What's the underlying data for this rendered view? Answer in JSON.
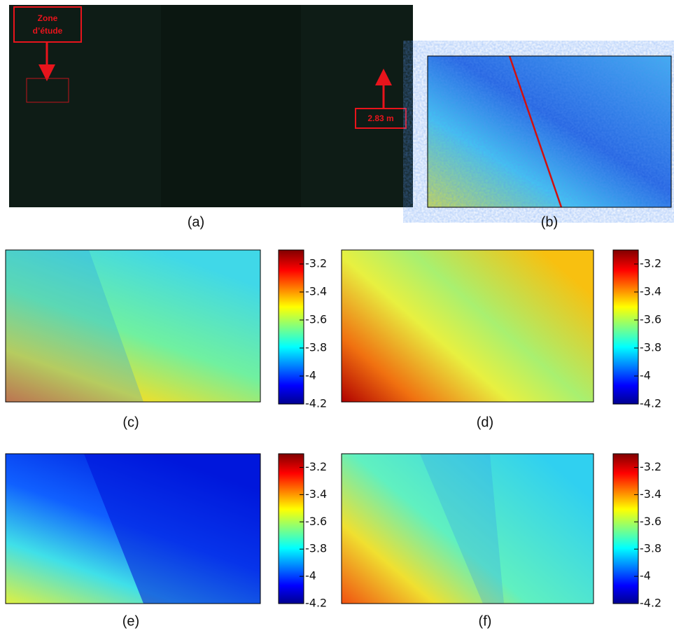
{
  "figure": {
    "panels": [
      {
        "caption": "(a)",
        "study_zone": [
          "Zone",
          "d’étude"
        ],
        "height": "2.83 m"
      },
      {
        "caption": "(b)"
      },
      {
        "caption": "(c)"
      },
      {
        "caption": "(d)"
      },
      {
        "caption": "(e)"
      },
      {
        "caption": "(f)"
      }
    ],
    "colorbar": {
      "range": [
        -4.2,
        -3.1
      ],
      "ticks": [
        -3.2,
        -3.4,
        -3.6,
        -3.8,
        -4,
        -4.2
      ]
    }
  }
}
